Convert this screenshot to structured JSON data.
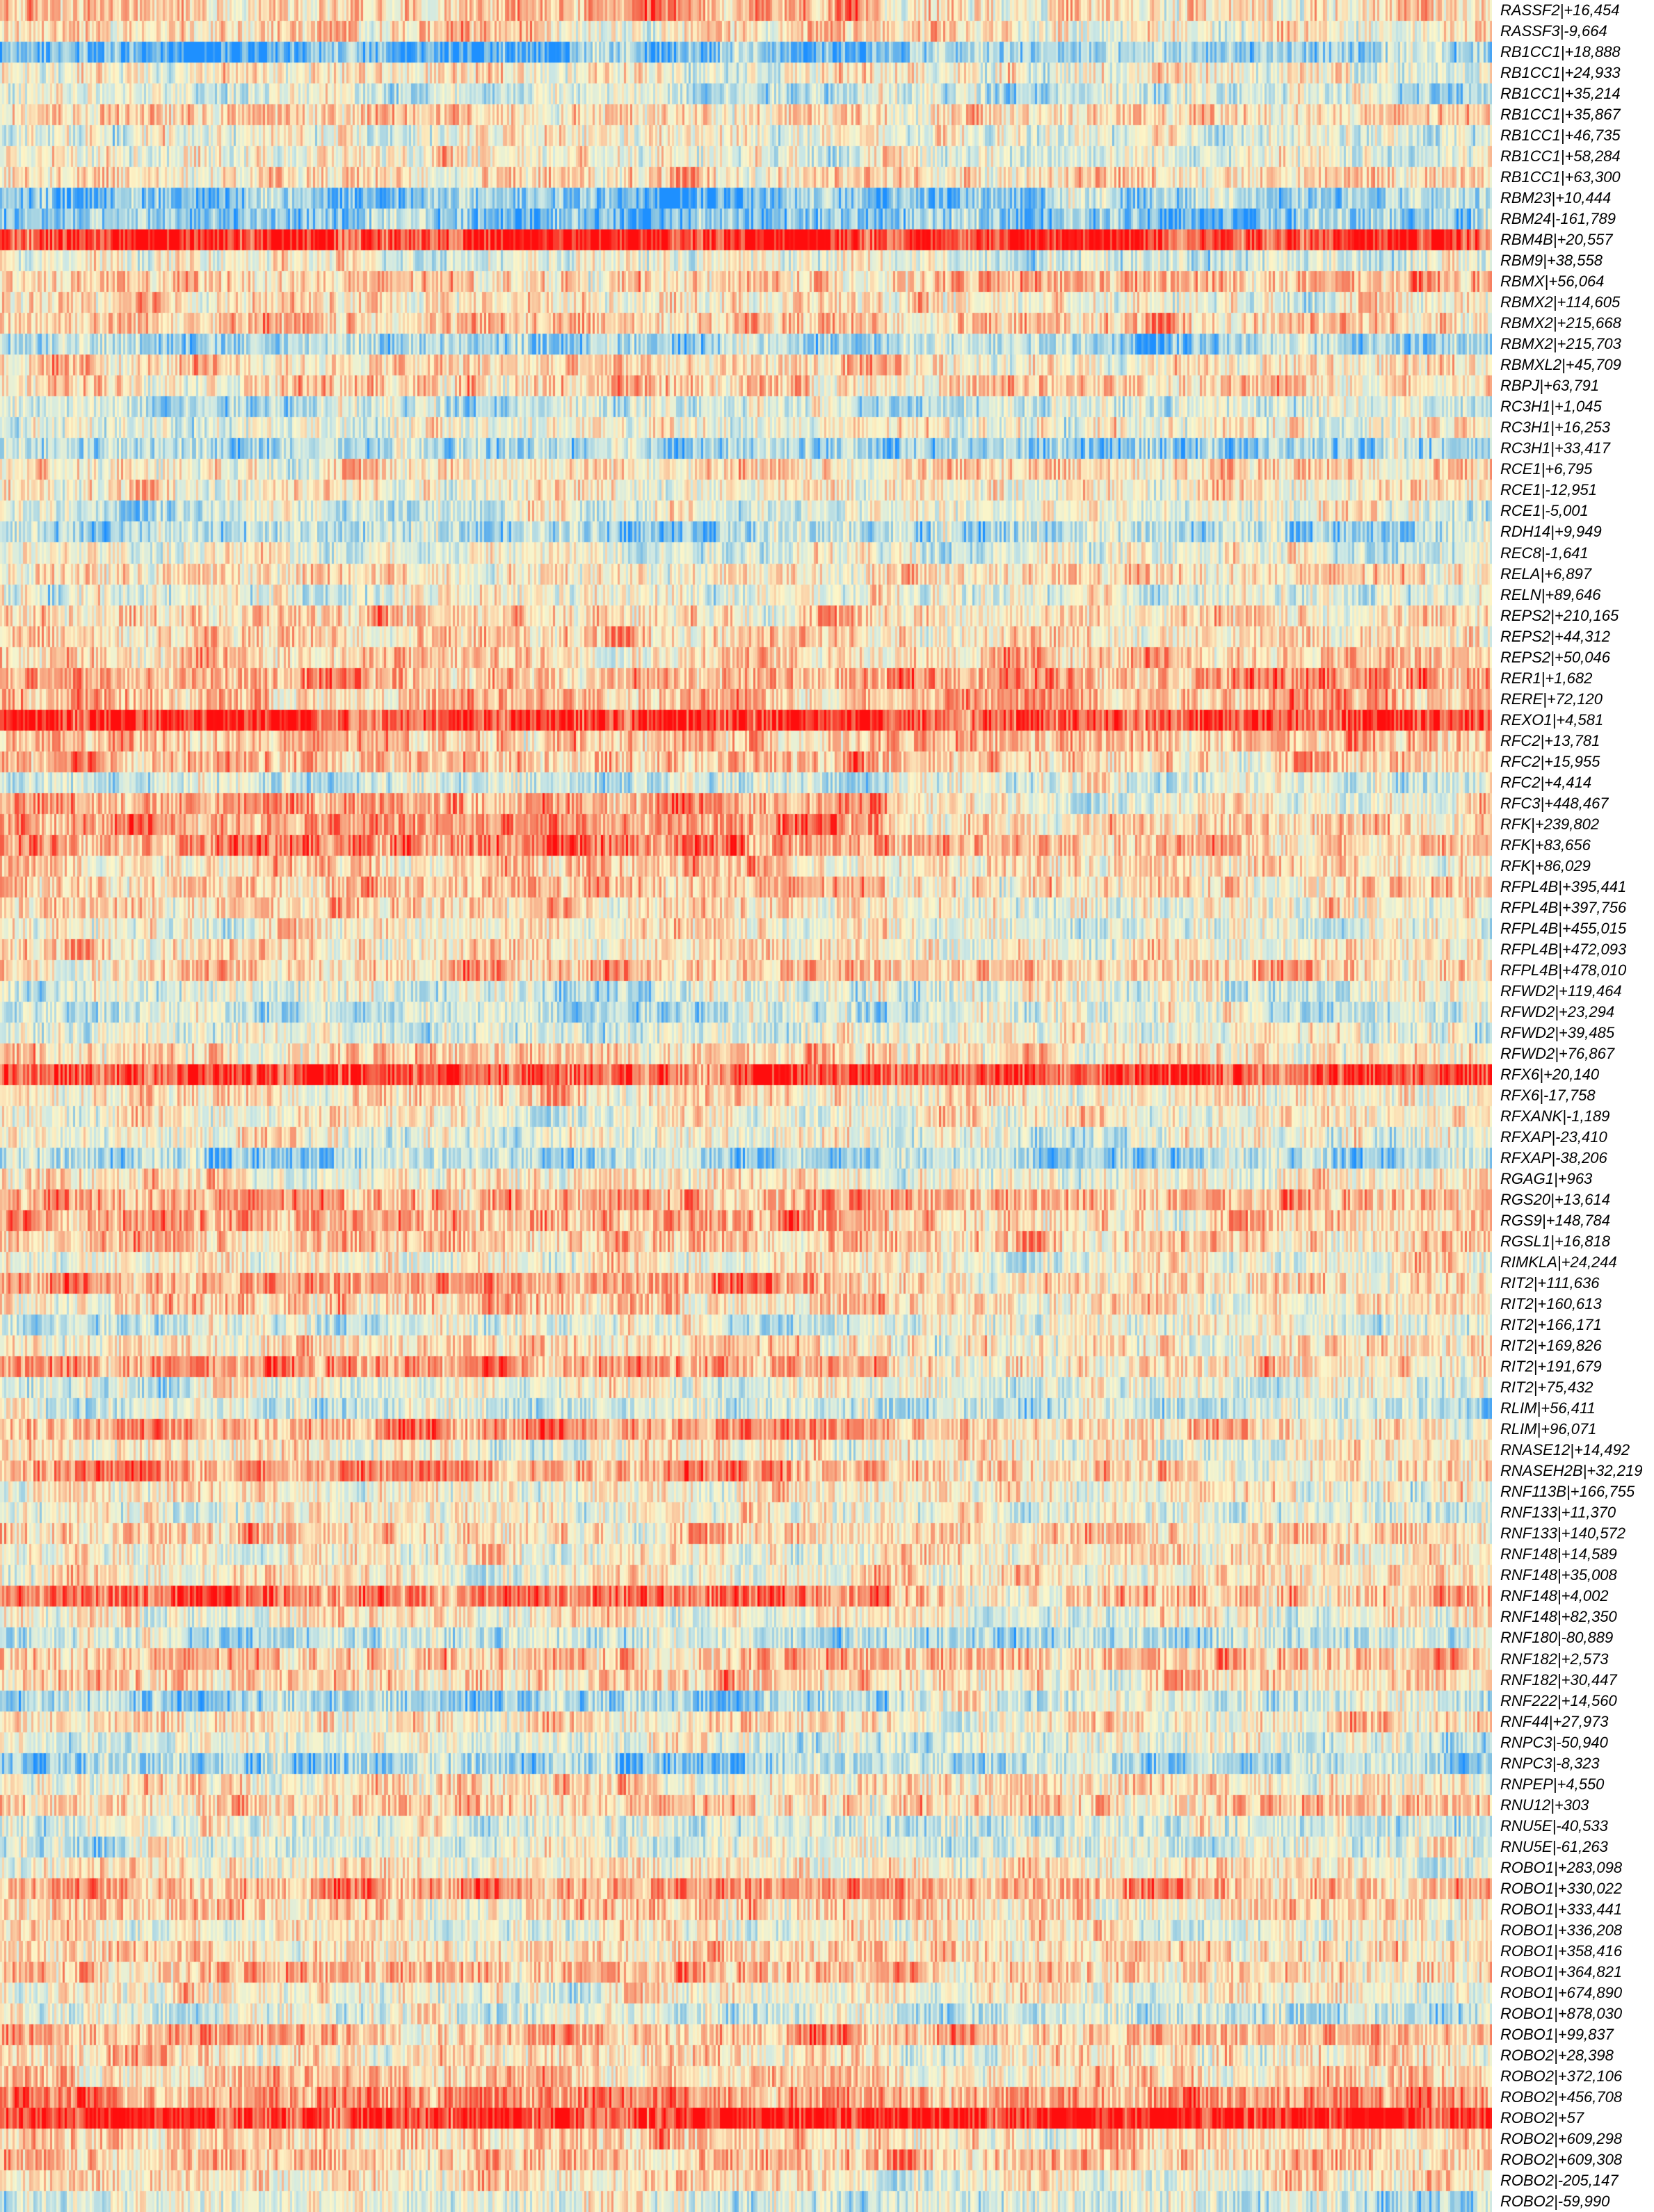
{
  "chart_data": {
    "type": "heatmap",
    "title": "",
    "xlabel": "",
    "ylabel": "",
    "x_tick_labels": [],
    "colormap": [
      "#1e90ff",
      "#88c4e2",
      "#cde8e4",
      "#fdf6c8",
      "#f8b48e",
      "#f56a4e",
      "#ff0d0d"
    ],
    "column_group_split_fraction": 0.595,
    "rows": [
      {
        "label": "RASSF2|+16,454",
        "group_a_mean": 0.62,
        "group_b_mean": 0.55
      },
      {
        "label": "RASSF3|-9,664",
        "group_a_mean": 0.58,
        "group_b_mean": 0.5
      },
      {
        "label": "RB1CC1|+18,888",
        "group_a_mean": 0.15,
        "group_b_mean": 0.22
      },
      {
        "label": "RB1CC1|+24,933",
        "group_a_mean": 0.52,
        "group_b_mean": 0.48
      },
      {
        "label": "RB1CC1|+35,214",
        "group_a_mean": 0.38,
        "group_b_mean": 0.35
      },
      {
        "label": "RB1CC1|+35,867",
        "group_a_mean": 0.6,
        "group_b_mean": 0.55
      },
      {
        "label": "RB1CC1|+46,735",
        "group_a_mean": 0.45,
        "group_b_mean": 0.4
      },
      {
        "label": "RB1CC1|+58,284",
        "group_a_mean": 0.5,
        "group_b_mean": 0.42
      },
      {
        "label": "RB1CC1|+63,300",
        "group_a_mean": 0.55,
        "group_b_mean": 0.58
      },
      {
        "label": "RBM23|+10,444",
        "group_a_mean": 0.2,
        "group_b_mean": 0.25
      },
      {
        "label": "RBM24|-161,789",
        "group_a_mean": 0.18,
        "group_b_mean": 0.22
      },
      {
        "label": "RBM4B|+20,557",
        "group_a_mean": 0.95,
        "group_b_mean": 0.95
      },
      {
        "label": "RBM9|+38,558",
        "group_a_mean": 0.45,
        "group_b_mean": 0.4
      },
      {
        "label": "RBMX|+56,064",
        "group_a_mean": 0.58,
        "group_b_mean": 0.62
      },
      {
        "label": "RBMX2|+114,605",
        "group_a_mean": 0.55,
        "group_b_mean": 0.5
      },
      {
        "label": "RBMX2|+215,668",
        "group_a_mean": 0.62,
        "group_b_mean": 0.6
      },
      {
        "label": "RBMX2|+215,703",
        "group_a_mean": 0.28,
        "group_b_mean": 0.3
      },
      {
        "label": "RBMXL2|+45,709",
        "group_a_mean": 0.55,
        "group_b_mean": 0.52
      },
      {
        "label": "RBPJ|+63,791",
        "group_a_mean": 0.6,
        "group_b_mean": 0.58
      },
      {
        "label": "RC3H1|+1,045",
        "group_a_mean": 0.35,
        "group_b_mean": 0.38
      },
      {
        "label": "RC3H1|+16,253",
        "group_a_mean": 0.45,
        "group_b_mean": 0.48
      },
      {
        "label": "RC3H1|+33,417",
        "group_a_mean": 0.25,
        "group_b_mean": 0.25
      },
      {
        "label": "RCE1|+6,795",
        "group_a_mean": 0.55,
        "group_b_mean": 0.58
      },
      {
        "label": "RCE1|-12,951",
        "group_a_mean": 0.5,
        "group_b_mean": 0.52
      },
      {
        "label": "RCE1|-5,001",
        "group_a_mean": 0.4,
        "group_b_mean": 0.42
      },
      {
        "label": "RDH14|+9,949",
        "group_a_mean": 0.3,
        "group_b_mean": 0.3
      },
      {
        "label": "REC8|-1,641",
        "group_a_mean": 0.45,
        "group_b_mean": 0.42
      },
      {
        "label": "RELA|+6,897",
        "group_a_mean": 0.55,
        "group_b_mean": 0.55
      },
      {
        "label": "RELN|+89,646",
        "group_a_mean": 0.42,
        "group_b_mean": 0.4
      },
      {
        "label": "REPS2|+210,165",
        "group_a_mean": 0.6,
        "group_b_mean": 0.55
      },
      {
        "label": "REPS2|+44,312",
        "group_a_mean": 0.58,
        "group_b_mean": 0.55
      },
      {
        "label": "REPS2|+50,046",
        "group_a_mean": 0.6,
        "group_b_mean": 0.6
      },
      {
        "label": "RER1|+1,682",
        "group_a_mean": 0.65,
        "group_b_mean": 0.75
      },
      {
        "label": "RERE|+72,120",
        "group_a_mean": 0.62,
        "group_b_mean": 0.7
      },
      {
        "label": "REXO1|+4,581",
        "group_a_mean": 0.92,
        "group_b_mean": 0.9
      },
      {
        "label": "RFC2|+13,781",
        "group_a_mean": 0.62,
        "group_b_mean": 0.6
      },
      {
        "label": "RFC2|+15,955",
        "group_a_mean": 0.65,
        "group_b_mean": 0.62
      },
      {
        "label": "RFC2|+4,414",
        "group_a_mean": 0.35,
        "group_b_mean": 0.4
      },
      {
        "label": "RFC3|+448,467",
        "group_a_mean": 0.72,
        "group_b_mean": 0.5
      },
      {
        "label": "RFK|+239,802",
        "group_a_mean": 0.7,
        "group_b_mean": 0.58
      },
      {
        "label": "RFK|+83,656",
        "group_a_mean": 0.78,
        "group_b_mean": 0.62
      },
      {
        "label": "RFK|+86,029",
        "group_a_mean": 0.6,
        "group_b_mean": 0.55
      },
      {
        "label": "RFPL4B|+395,441",
        "group_a_mean": 0.62,
        "group_b_mean": 0.55
      },
      {
        "label": "RFPL4B|+397,756",
        "group_a_mean": 0.55,
        "group_b_mean": 0.48
      },
      {
        "label": "RFPL4B|+455,015",
        "group_a_mean": 0.52,
        "group_b_mean": 0.42
      },
      {
        "label": "RFPL4B|+472,093",
        "group_a_mean": 0.55,
        "group_b_mean": 0.5
      },
      {
        "label": "RFPL4B|+478,010",
        "group_a_mean": 0.62,
        "group_b_mean": 0.58
      },
      {
        "label": "RFWD2|+119,464",
        "group_a_mean": 0.4,
        "group_b_mean": 0.42
      },
      {
        "label": "RFWD2|+23,294",
        "group_a_mean": 0.35,
        "group_b_mean": 0.4
      },
      {
        "label": "RFWD2|+39,485",
        "group_a_mean": 0.42,
        "group_b_mean": 0.45
      },
      {
        "label": "RFWD2|+76,867",
        "group_a_mean": 0.55,
        "group_b_mean": 0.52
      },
      {
        "label": "RFX6|+20,140",
        "group_a_mean": 0.9,
        "group_b_mean": 0.88
      },
      {
        "label": "RFX6|-17,758",
        "group_a_mean": 0.55,
        "group_b_mean": 0.52
      },
      {
        "label": "RFXANK|-1,189",
        "group_a_mean": 0.5,
        "group_b_mean": 0.48
      },
      {
        "label": "RFXAP|-23,410",
        "group_a_mean": 0.45,
        "group_b_mean": 0.45
      },
      {
        "label": "RFXAP|-38,206",
        "group_a_mean": 0.28,
        "group_b_mean": 0.3
      },
      {
        "label": "RGAG1|+963",
        "group_a_mean": 0.52,
        "group_b_mean": 0.5
      },
      {
        "label": "RGS20|+13,614",
        "group_a_mean": 0.68,
        "group_b_mean": 0.62
      },
      {
        "label": "RGS9|+148,784",
        "group_a_mean": 0.7,
        "group_b_mean": 0.6
      },
      {
        "label": "RGSL1|+16,818",
        "group_a_mean": 0.62,
        "group_b_mean": 0.58
      },
      {
        "label": "RIMKLA|+24,244",
        "group_a_mean": 0.5,
        "group_b_mean": 0.5
      },
      {
        "label": "RIT2|+111,636",
        "group_a_mean": 0.68,
        "group_b_mean": 0.55
      },
      {
        "label": "RIT2|+160,613",
        "group_a_mean": 0.6,
        "group_b_mean": 0.52
      },
      {
        "label": "RIT2|+166,171",
        "group_a_mean": 0.4,
        "group_b_mean": 0.45
      },
      {
        "label": "RIT2|+169,826",
        "group_a_mean": 0.55,
        "group_b_mean": 0.5
      },
      {
        "label": "RIT2|+191,679",
        "group_a_mean": 0.7,
        "group_b_mean": 0.55
      },
      {
        "label": "RIT2|+75,432",
        "group_a_mean": 0.45,
        "group_b_mean": 0.42
      },
      {
        "label": "RLIM|+56,411",
        "group_a_mean": 0.38,
        "group_b_mean": 0.35
      },
      {
        "label": "RLIM|+96,071",
        "group_a_mean": 0.72,
        "group_b_mean": 0.55
      },
      {
        "label": "RNASE12|+14,492",
        "group_a_mean": 0.5,
        "group_b_mean": 0.48
      },
      {
        "label": "RNASEH2B|+32,219",
        "group_a_mean": 0.75,
        "group_b_mean": 0.55
      },
      {
        "label": "RNF113B|+166,755",
        "group_a_mean": 0.52,
        "group_b_mean": 0.48
      },
      {
        "label": "RNF133|+11,370",
        "group_a_mean": 0.45,
        "group_b_mean": 0.42
      },
      {
        "label": "RNF133|+140,572",
        "group_a_mean": 0.6,
        "group_b_mean": 0.58
      },
      {
        "label": "RNF148|+14,589",
        "group_a_mean": 0.48,
        "group_b_mean": 0.55
      },
      {
        "label": "RNF148|+35,008",
        "group_a_mean": 0.52,
        "group_b_mean": 0.5
      },
      {
        "label": "RNF148|+4,002",
        "group_a_mean": 0.8,
        "group_b_mean": 0.62
      },
      {
        "label": "RNF148|+82,350",
        "group_a_mean": 0.5,
        "group_b_mean": 0.48
      },
      {
        "label": "RNF180|-80,889",
        "group_a_mean": 0.35,
        "group_b_mean": 0.32
      },
      {
        "label": "RNF182|+2,573",
        "group_a_mean": 0.62,
        "group_b_mean": 0.6
      },
      {
        "label": "RNF182|+30,447",
        "group_a_mean": 0.6,
        "group_b_mean": 0.58
      },
      {
        "label": "RNF222|+14,560",
        "group_a_mean": 0.25,
        "group_b_mean": 0.4
      },
      {
        "label": "RNF44|+27,973",
        "group_a_mean": 0.55,
        "group_b_mean": 0.55
      },
      {
        "label": "RNPC3|-50,940",
        "group_a_mean": 0.4,
        "group_b_mean": 0.42
      },
      {
        "label": "RNPC3|-8,323",
        "group_a_mean": 0.25,
        "group_b_mean": 0.3
      },
      {
        "label": "RNPEP|+4,550",
        "group_a_mean": 0.55,
        "group_b_mean": 0.55
      },
      {
        "label": "RNU12|+303",
        "group_a_mean": 0.58,
        "group_b_mean": 0.58
      },
      {
        "label": "RNU5E|-40,533",
        "group_a_mean": 0.4,
        "group_b_mean": 0.38
      },
      {
        "label": "RNU5E|-61,263",
        "group_a_mean": 0.42,
        "group_b_mean": 0.4
      },
      {
        "label": "ROBO1|+283,098",
        "group_a_mean": 0.52,
        "group_b_mean": 0.52
      },
      {
        "label": "ROBO1|+330,022",
        "group_a_mean": 0.7,
        "group_b_mean": 0.65
      },
      {
        "label": "ROBO1|+333,441",
        "group_a_mean": 0.6,
        "group_b_mean": 0.55
      },
      {
        "label": "ROBO1|+336,208",
        "group_a_mean": 0.5,
        "group_b_mean": 0.48
      },
      {
        "label": "ROBO1|+358,416",
        "group_a_mean": 0.58,
        "group_b_mean": 0.55
      },
      {
        "label": "ROBO1|+364,821",
        "group_a_mean": 0.62,
        "group_b_mean": 0.58
      },
      {
        "label": "ROBO1|+674,890",
        "group_a_mean": 0.5,
        "group_b_mean": 0.48
      },
      {
        "label": "ROBO1|+878,030",
        "group_a_mean": 0.4,
        "group_b_mean": 0.35
      },
      {
        "label": "ROBO1|+99,837",
        "group_a_mean": 0.68,
        "group_b_mean": 0.62
      },
      {
        "label": "ROBO2|+28,398",
        "group_a_mean": 0.55,
        "group_b_mean": 0.52
      },
      {
        "label": "ROBO2|+372,106",
        "group_a_mean": 0.6,
        "group_b_mean": 0.58
      },
      {
        "label": "ROBO2|+456,708",
        "group_a_mean": 0.75,
        "group_b_mean": 0.72
      },
      {
        "label": "ROBO2|+57",
        "group_a_mean": 0.92,
        "group_b_mean": 0.95
      },
      {
        "label": "ROBO2|+609,298",
        "group_a_mean": 0.6,
        "group_b_mean": 0.58
      },
      {
        "label": "ROBO2|+609,308",
        "group_a_mean": 0.62,
        "group_b_mean": 0.62
      },
      {
        "label": "ROBO2|-205,147",
        "group_a_mean": 0.55,
        "group_b_mean": 0.5
      },
      {
        "label": "ROBO2|-59,990",
        "group_a_mean": 0.4,
        "group_b_mean": 0.38
      }
    ]
  }
}
